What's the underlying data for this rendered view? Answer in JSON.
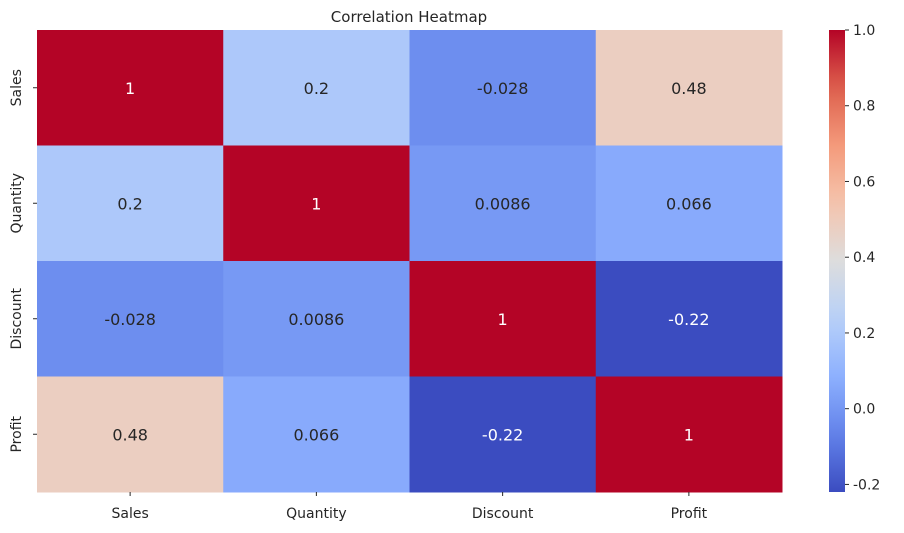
{
  "chart_data": {
    "type": "heatmap",
    "title": "Correlation Heatmap",
    "xlabel": "",
    "ylabel": "",
    "x_categories": [
      "Sales",
      "Quantity",
      "Discount",
      "Profit"
    ],
    "y_categories": [
      "Sales",
      "Quantity",
      "Discount",
      "Profit"
    ],
    "matrix": [
      [
        1,
        0.2,
        -0.028,
        0.48
      ],
      [
        0.2,
        1,
        0.0086,
        0.066
      ],
      [
        -0.028,
        0.0086,
        1,
        -0.22
      ],
      [
        0.48,
        0.066,
        -0.22,
        1
      ]
    ],
    "annotations": [
      [
        "1",
        "0.2",
        "-0.028",
        "0.48"
      ],
      [
        "0.2",
        "1",
        "0.0086",
        "0.066"
      ],
      [
        "-0.028",
        "0.0086",
        "1",
        "-0.22"
      ],
      [
        "0.48",
        "0.066",
        "-0.22",
        "1"
      ]
    ],
    "colormap": "coolwarm",
    "vmin": -0.22,
    "vmax": 1,
    "colorbar_ticks": [
      -0.2,
      0.0,
      0.2,
      0.4,
      0.6,
      0.8,
      1.0
    ],
    "colorbar_tick_labels": [
      "-0.2",
      "0.0",
      "0.2",
      "0.4",
      "0.6",
      "0.8",
      "1.0"
    ],
    "colorbar_position": "right",
    "grid": false
  }
}
